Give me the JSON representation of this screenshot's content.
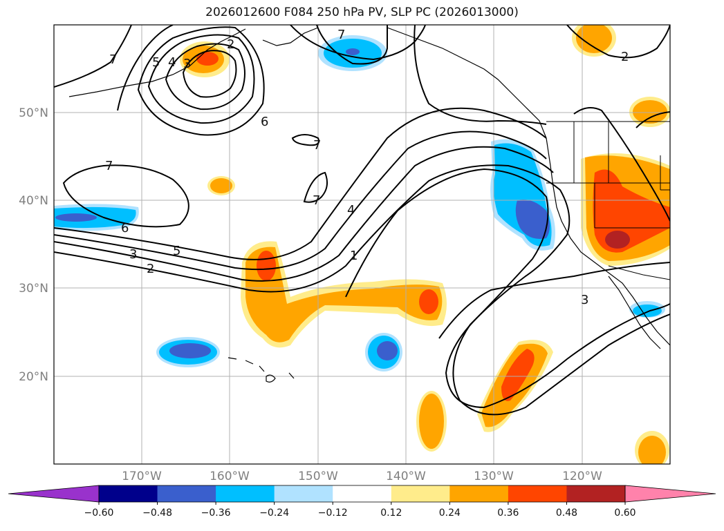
{
  "title": "2026012600 F084 250 hPa PV, SLP PC (2026013000)",
  "lat_labels": [
    "50°N",
    "40°N",
    "30°N",
    "20°N"
  ],
  "lon_labels": [
    "170°W",
    "160°W",
    "150°W",
    "140°W",
    "130°W",
    "120°W"
  ],
  "colorbar": {
    "colors": [
      "#9932cc",
      "#00008b",
      "#3a5fcd",
      "#00bfff",
      "#b0e2ff",
      "#ffffff",
      "#ffec8b",
      "#ffa500",
      "#ff4500",
      "#b22222",
      "#ff82ab"
    ],
    "tick_labels": [
      "−0.60",
      "−0.48",
      "−0.36",
      "−0.24",
      "−0.12",
      "0.12",
      "0.24",
      "0.36",
      "0.48",
      "0.60"
    ]
  },
  "contour_labels": {
    "l7a": "7",
    "l5a": "5",
    "l4a": "4",
    "l3a": "3",
    "l2a": "2",
    "l7b": "7",
    "l6a": "6",
    "l7c": "7",
    "l7d": "7",
    "l7e": "7",
    "l6b": "6",
    "l5b": "5",
    "l3b": "3",
    "l2b": "2",
    "l4b": "4",
    "l1a": "1",
    "l2c": "2",
    "l3c": "3"
  }
}
